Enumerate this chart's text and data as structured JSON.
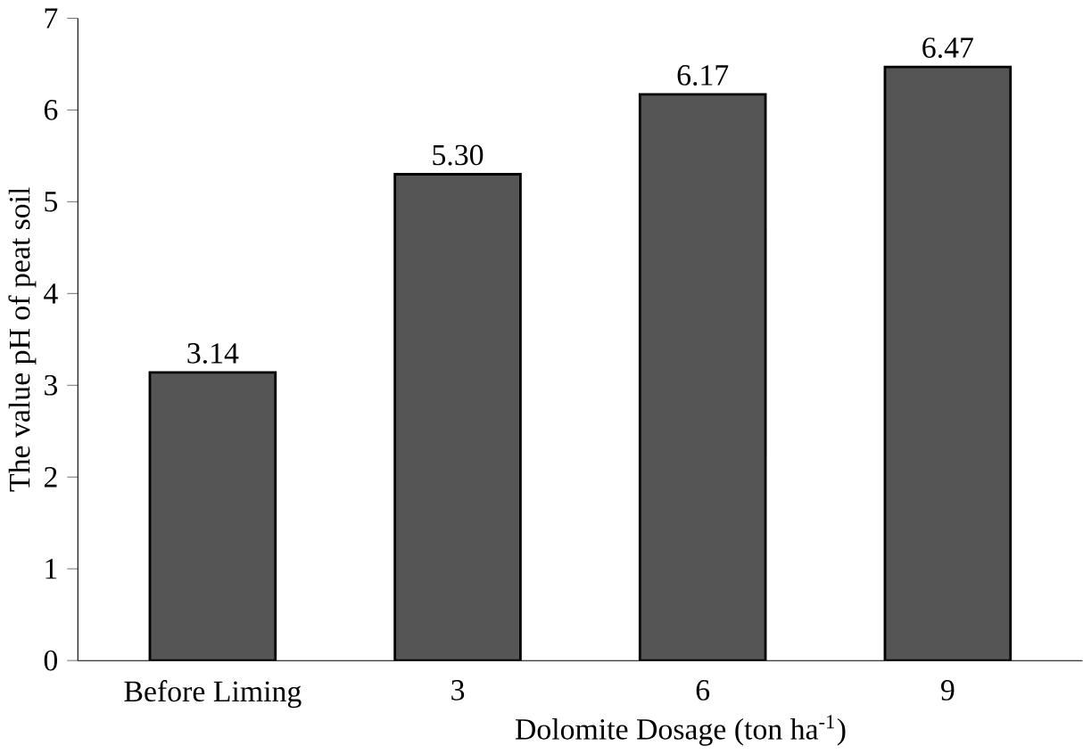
{
  "chart_data": {
    "type": "bar",
    "xlabel": "Dolomite Dosage (ton ha$^{-1}$)",
    "ylabel": "The value pH of peat soil",
    "categories": [
      "Before Liming",
      "3",
      "6",
      "9"
    ],
    "values": [
      3.14,
      5.3,
      6.17,
      6.47
    ],
    "value_labels": [
      "3.14",
      "5.30",
      "6.17",
      "6.47"
    ],
    "color": "#555555",
    "ylim": [
      0,
      7
    ],
    "yticks": [
      0,
      1,
      2,
      3,
      4,
      5,
      6,
      7
    ],
    "grid": false
  }
}
